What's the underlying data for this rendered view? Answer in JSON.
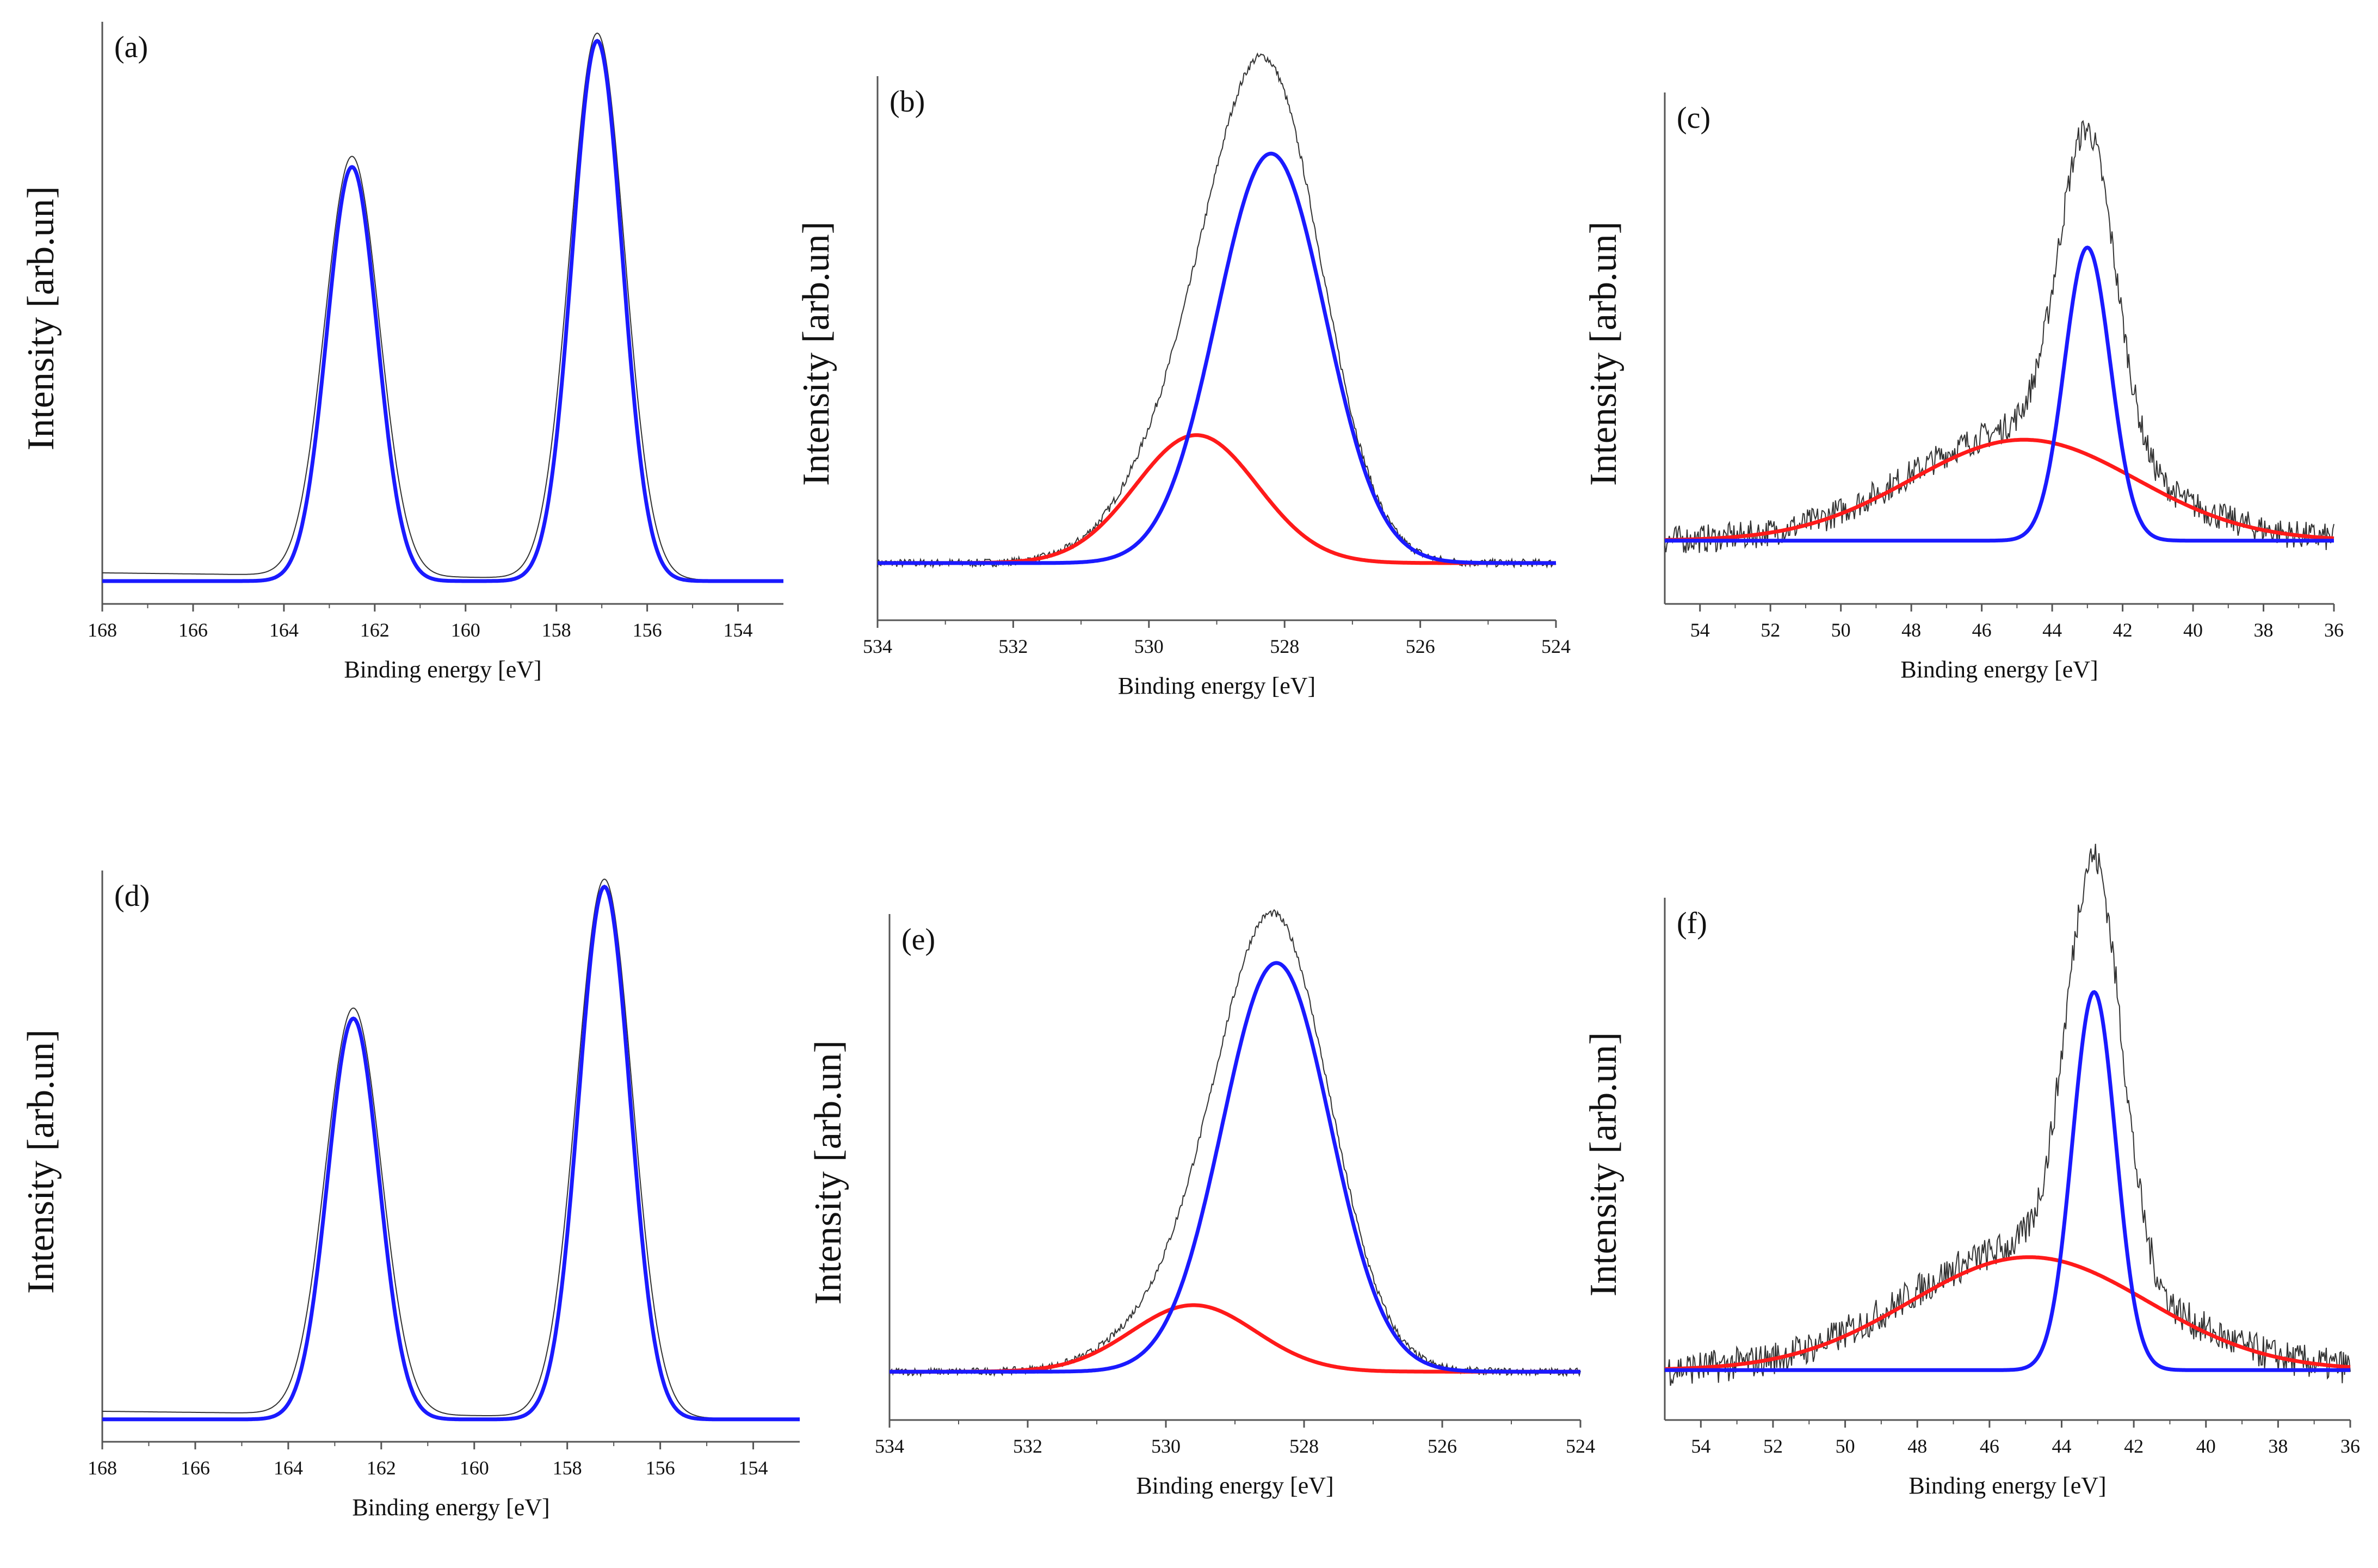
{
  "figure": {
    "description_free": true,
    "colors": {
      "raw": "#333333",
      "blue_fit": "#1a1aff",
      "red_fit": "#ff1a1a",
      "axis": "#555555"
    }
  },
  "chart_data": [
    {
      "type": "line",
      "panel_label": "(a)",
      "xlabel": "Binding energy [eV]",
      "ylabel": "Intensity [arb.un]",
      "xlim": [
        168,
        153
      ],
      "ylim": [
        0,
        1
      ],
      "xticks": [
        168,
        166,
        164,
        162,
        160,
        158,
        156,
        154
      ],
      "xtick_labels": [
        "168",
        "166",
        "164",
        "162",
        "160",
        "158",
        "156",
        "154"
      ],
      "baseline": 0.0,
      "blue_peaks": [
        {
          "center": 162.5,
          "height": 0.755,
          "sigma": 0.55
        },
        {
          "center": 157.1,
          "height": 0.985,
          "sigma": 0.55
        }
      ],
      "red_peaks": [],
      "raw": {
        "peaks": [
          {
            "center": 162.5,
            "height": 0.765,
            "sigma": 0.6
          },
          {
            "center": 157.1,
            "height": 0.995,
            "sigma": 0.6
          }
        ],
        "noise": 0.0,
        "tail": 0.015
      }
    },
    {
      "type": "line",
      "panel_label": "(b)",
      "xlabel": "Binding energy [eV]",
      "ylabel": "Intensity [arb.un]",
      "xlim": [
        534,
        524
      ],
      "ylim": [
        0,
        1
      ],
      "xticks": [
        534,
        532,
        530,
        528,
        526,
        524
      ],
      "xtick_labels": [
        "534",
        "532",
        "530",
        "528",
        "526",
        "524"
      ],
      "baseline": 0.07,
      "blue_peaks": [
        {
          "center": 528.2,
          "height": 0.8,
          "sigma": 0.8
        }
      ],
      "red_peaks": [
        {
          "center": 529.3,
          "height": 0.25,
          "sigma": 0.9
        }
      ],
      "raw": {
        "peaks": [
          {
            "center": 528.2,
            "height": 0.85,
            "sigma": 0.8
          },
          {
            "center": 529.3,
            "height": 0.27,
            "sigma": 0.9
          }
        ],
        "noise": 0.008,
        "tail": 0.0
      }
    },
    {
      "type": "line",
      "panel_label": "(c)",
      "xlabel": "Binding energy [eV]",
      "ylabel": "Intensity [arb.un]",
      "xlim": [
        55,
        36
      ],
      "ylim": [
        0,
        1
      ],
      "xticks": [
        54,
        52,
        50,
        48,
        46,
        44,
        42,
        40,
        38,
        36
      ],
      "xtick_labels": [
        "54",
        "52",
        "50",
        "48",
        "46",
        "44",
        "42",
        "40",
        "38",
        "36"
      ],
      "baseline": 0.09,
      "blue_peaks": [
        {
          "center": 43.0,
          "height": 0.61,
          "sigma": 0.65
        }
      ],
      "red_peaks": [
        {
          "center": 44.8,
          "height": 0.21,
          "sigma": 3.2
        }
      ],
      "raw": {
        "peaks": [
          {
            "center": 43.0,
            "height": 0.66,
            "sigma": 0.8
          },
          {
            "center": 44.8,
            "height": 0.23,
            "sigma": 3.2
          }
        ],
        "noise": 0.03,
        "tail": 0.0
      }
    },
    {
      "type": "line",
      "panel_label": "(d)",
      "xlabel": "Binding energy [eV]",
      "ylabel": "Intensity [arb.un]",
      "xlim": [
        168,
        153
      ],
      "ylim": [
        0,
        1
      ],
      "xticks": [
        168,
        166,
        164,
        162,
        160,
        158,
        156,
        154
      ],
      "xtick_labels": [
        "168",
        "166",
        "164",
        "162",
        "160",
        "158",
        "156",
        "154"
      ],
      "baseline": 0.0,
      "blue_peaks": [
        {
          "center": 162.6,
          "height": 0.745,
          "sigma": 0.55
        },
        {
          "center": 157.2,
          "height": 0.99,
          "sigma": 0.55
        }
      ],
      "red_peaks": [],
      "raw": {
        "peaks": [
          {
            "center": 162.6,
            "height": 0.755,
            "sigma": 0.6
          },
          {
            "center": 157.2,
            "height": 1.0,
            "sigma": 0.6
          }
        ],
        "noise": 0.0,
        "tail": 0.015
      }
    },
    {
      "type": "line",
      "panel_label": "(e)",
      "xlabel": "Binding energy [eV]",
      "ylabel": "Intensity [arb.un]",
      "xlim": [
        534,
        524
      ],
      "ylim": [
        0,
        1
      ],
      "xticks": [
        534,
        532,
        530,
        528,
        526,
        524
      ],
      "xtick_labels": [
        "534",
        "532",
        "530",
        "528",
        "526",
        "524"
      ],
      "baseline": 0.06,
      "blue_peaks": [
        {
          "center": 528.4,
          "height": 0.86,
          "sigma": 0.78
        }
      ],
      "red_peaks": [
        {
          "center": 529.6,
          "height": 0.14,
          "sigma": 0.9
        }
      ],
      "raw": {
        "peaks": [
          {
            "center": 528.4,
            "height": 0.9,
            "sigma": 0.8
          },
          {
            "center": 529.6,
            "height": 0.15,
            "sigma": 0.9
          }
        ],
        "noise": 0.008,
        "tail": 0.0
      }
    },
    {
      "type": "line",
      "panel_label": "(f)",
      "xlabel": "Binding energy [eV]",
      "ylabel": "Intensity [arb.un]",
      "xlim": [
        55,
        36
      ],
      "ylim": [
        0,
        1
      ],
      "xticks": [
        54,
        52,
        50,
        48,
        46,
        44,
        42,
        40,
        38,
        36
      ],
      "xtick_labels": [
        "54",
        "52",
        "50",
        "48",
        "46",
        "44",
        "42",
        "40",
        "38",
        "36"
      ],
      "baseline": 0.06,
      "blue_peaks": [
        {
          "center": 43.1,
          "height": 0.77,
          "sigma": 0.6
        }
      ],
      "red_peaks": [
        {
          "center": 44.9,
          "height": 0.23,
          "sigma": 3.3
        }
      ],
      "raw": {
        "peaks": [
          {
            "center": 43.1,
            "height": 0.83,
            "sigma": 0.75
          },
          {
            "center": 44.9,
            "height": 0.25,
            "sigma": 3.3
          }
        ],
        "noise": 0.035,
        "tail": 0.0
      }
    }
  ]
}
